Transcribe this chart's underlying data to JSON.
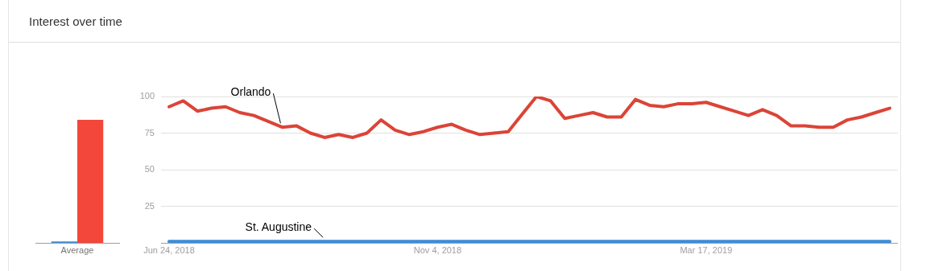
{
  "chart_data": [
    {
      "type": "bar",
      "title": "Interest over time",
      "categories": [
        "Average"
      ],
      "series": [
        {
          "color": "#3c8dd9",
          "values": [
            1
          ]
        },
        {
          "color": "#f2473a",
          "values": [
            84
          ]
        }
      ],
      "ylim": [
        0,
        100
      ],
      "tick_labels": "x",
      "grid": false,
      "legend": false
    },
    {
      "type": "line",
      "x": [
        "2018-06-24",
        "2018-07-01",
        "2018-07-08",
        "2018-07-15",
        "2018-07-22",
        "2018-07-29",
        "2018-08-05",
        "2018-08-12",
        "2018-08-19",
        "2018-08-26",
        "2018-09-02",
        "2018-09-09",
        "2018-09-16",
        "2018-09-23",
        "2018-09-30",
        "2018-10-07",
        "2018-10-14",
        "2018-10-21",
        "2018-10-28",
        "2018-11-04",
        "2018-11-11",
        "2018-11-18",
        "2018-11-25",
        "2018-12-02",
        "2018-12-09",
        "2018-12-16",
        "2018-12-23",
        "2018-12-30",
        "2019-01-06",
        "2019-01-13",
        "2019-01-20",
        "2019-01-27",
        "2019-02-03",
        "2019-02-10",
        "2019-02-17",
        "2019-02-24",
        "2019-03-03",
        "2019-03-10",
        "2019-03-17",
        "2019-03-24",
        "2019-03-31",
        "2019-04-07",
        "2019-04-14",
        "2019-04-21",
        "2019-04-28",
        "2019-05-05",
        "2019-05-12",
        "2019-05-19",
        "2019-05-26",
        "2019-06-02",
        "2019-06-09",
        "2019-06-16"
      ],
      "series": [
        {
          "name": "Orlando",
          "color": "#db4437",
          "values": [
            93,
            97,
            90,
            92,
            93,
            89,
            87,
            83,
            79,
            80,
            75,
            72,
            74,
            72,
            75,
            84,
            77,
            74,
            76,
            79,
            81,
            77,
            74,
            75,
            76,
            88,
            100,
            97,
            85,
            87,
            89,
            86,
            86,
            98,
            94,
            93,
            95,
            95,
            96,
            93,
            90,
            87,
            91,
            87,
            80,
            80,
            79,
            79,
            84,
            86,
            89,
            92
          ]
        },
        {
          "name": "St. Augustine",
          "color": "#3c8dd9",
          "values": [
            1,
            1,
            1,
            1,
            1,
            1,
            1,
            1,
            1,
            1,
            1,
            1,
            1,
            1,
            1,
            1,
            1,
            1,
            1,
            1,
            1,
            1,
            1,
            1,
            1,
            1,
            1,
            1,
            1,
            1,
            1,
            1,
            1,
            1,
            1,
            1,
            1,
            1,
            1,
            1,
            1,
            1,
            1,
            1,
            1,
            1,
            1,
            1,
            1,
            1,
            1,
            1
          ]
        }
      ],
      "xlim": [
        "2018-06-20",
        "2019-06-20"
      ],
      "xticks": [
        {
          "value": "2018-06-24",
          "label": "Jun 24, 2018"
        },
        {
          "value": "2018-11-04",
          "label": "Nov 4, 2018"
        },
        {
          "value": "2019-03-17",
          "label": "Mar 17, 2019"
        }
      ],
      "ylim": [
        0,
        100
      ],
      "yticks": [
        {
          "value": 0,
          "label": null
        },
        25,
        50,
        75,
        100
      ],
      "grid": "y",
      "legend": false,
      "marker": "none"
    }
  ]
}
